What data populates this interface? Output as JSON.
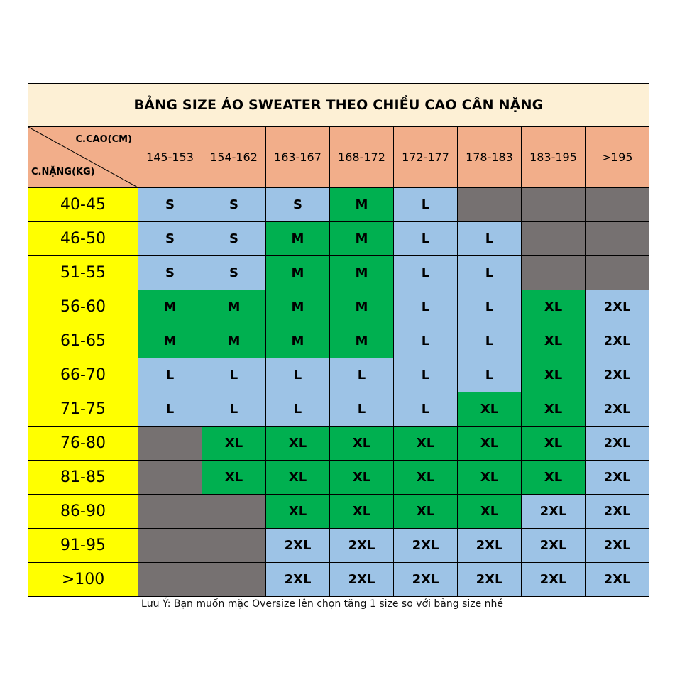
{
  "title": "BẢNG SIZE ÁO SWEATER THEO CHIỀU CAO CÂN NẶNG",
  "corner": {
    "height_label": "C.CAO(CM)",
    "weight_label": "C.NẶNG(KG)"
  },
  "heights": [
    "145-153",
    "154-162",
    "163-167",
    "168-172",
    "172-177",
    "178-183",
    "183-195",
    ">195"
  ],
  "rows": [
    {
      "weight": "40-45",
      "sizes": [
        "S",
        "S",
        "S",
        "M",
        "L",
        "",
        "",
        ""
      ]
    },
    {
      "weight": "46-50",
      "sizes": [
        "S",
        "S",
        "M",
        "M",
        "L",
        "L",
        "",
        ""
      ]
    },
    {
      "weight": "51-55",
      "sizes": [
        "S",
        "S",
        "M",
        "M",
        "L",
        "L",
        "",
        ""
      ]
    },
    {
      "weight": "56-60",
      "sizes": [
        "M",
        "M",
        "M",
        "M",
        "L",
        "L",
        "XL",
        "2XL"
      ]
    },
    {
      "weight": "61-65",
      "sizes": [
        "M",
        "M",
        "M",
        "M",
        "L",
        "L",
        "XL",
        "2XL"
      ]
    },
    {
      "weight": "66-70",
      "sizes": [
        "L",
        "L",
        "L",
        "L",
        "L",
        "L",
        "XL",
        "2XL"
      ]
    },
    {
      "weight": "71-75",
      "sizes": [
        "L",
        "L",
        "L",
        "L",
        "L",
        "XL",
        "XL",
        "2XL"
      ]
    },
    {
      "weight": "76-80",
      "sizes": [
        "",
        "XL",
        "XL",
        "XL",
        "XL",
        "XL",
        "XL",
        "2XL"
      ]
    },
    {
      "weight": "81-85",
      "sizes": [
        "",
        "XL",
        "XL",
        "XL",
        "XL",
        "XL",
        "XL",
        "2XL"
      ]
    },
    {
      "weight": "86-90",
      "sizes": [
        "",
        "",
        "XL",
        "XL",
        "XL",
        "XL",
        "2XL",
        "2XL"
      ]
    },
    {
      "weight": "91-95",
      "sizes": [
        "",
        "",
        "2XL",
        "2XL",
        "2XL",
        "2XL",
        "2XL",
        "2XL"
      ]
    },
    {
      "weight": ">100",
      "sizes": [
        "",
        "",
        "2XL",
        "2XL",
        "2XL",
        "2XL",
        "2XL",
        "2XL"
      ]
    }
  ],
  "size_colors": {
    "S": "#9dc3e6",
    "L": "#9dc3e6",
    "2XL": "#9dc3e6",
    "M": "#00b050",
    "XL": "#00b050",
    "none": "#767171"
  },
  "note": "Lưu Ý: Bạn muốn mặc Oversize lên chọn tăng 1 size so với bảng size nhé"
}
